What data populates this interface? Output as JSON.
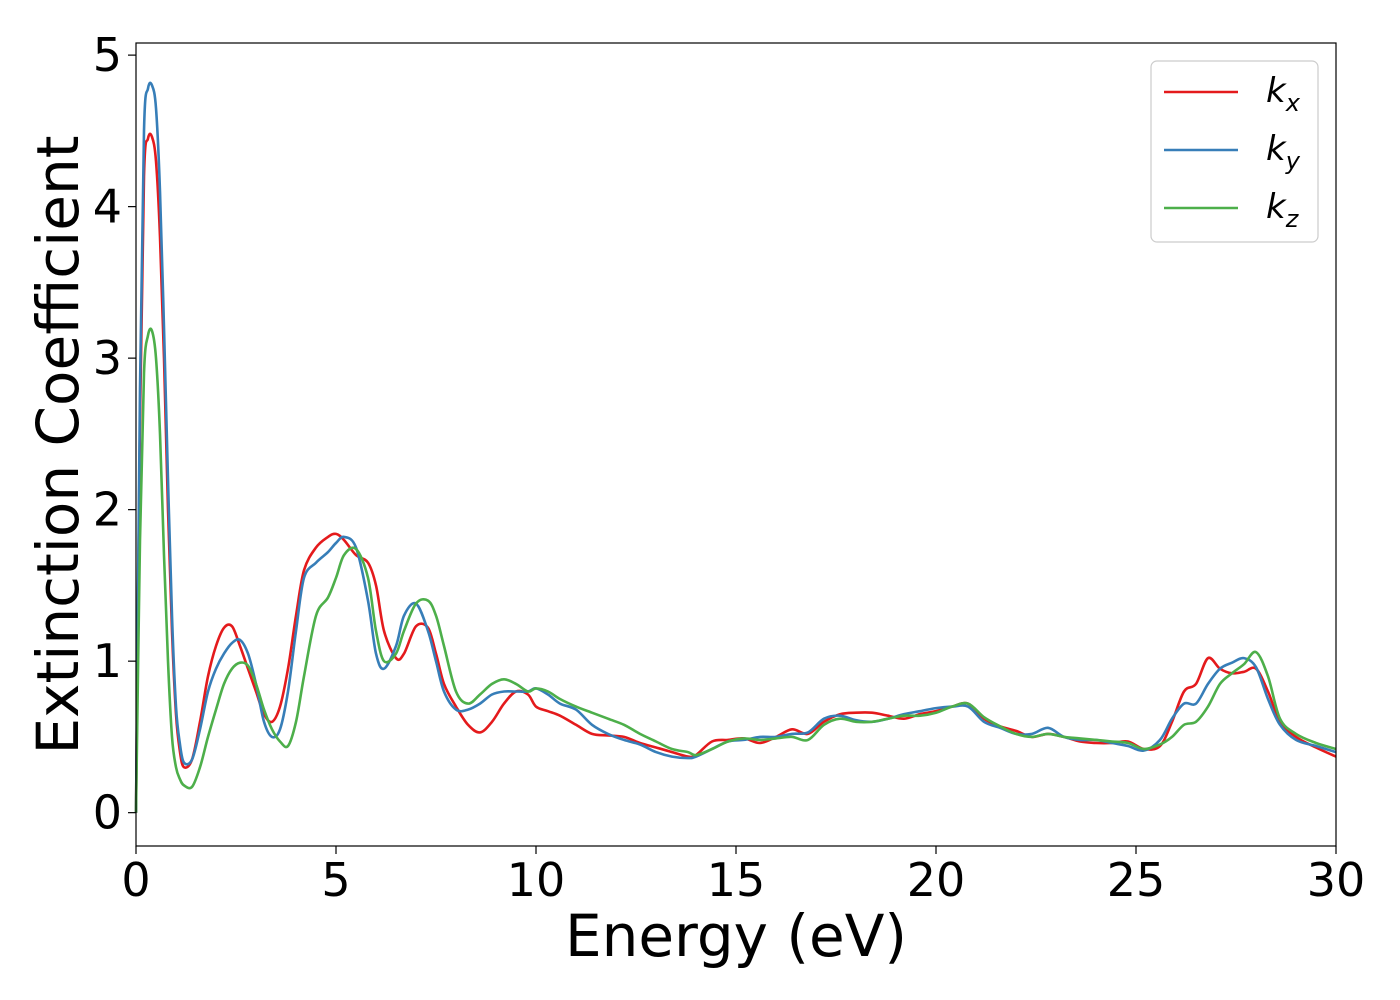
{
  "chart_data": {
    "type": "line",
    "title": "",
    "xlabel": "Energy (eV)",
    "ylabel": "Extinction Coefficient",
    "xlim": [
      0,
      30
    ],
    "ylim": [
      -0.22,
      5.08
    ],
    "xticks": [
      0,
      5,
      10,
      15,
      20,
      25,
      30
    ],
    "yticks": [
      0,
      1,
      2,
      3,
      4,
      5
    ],
    "grid": false,
    "legend_position": "top-right",
    "series": [
      {
        "name": "k",
        "subscript": "x",
        "color": "#e41a1c",
        "x": [
          0.0,
          0.1,
          0.2,
          0.3,
          0.4,
          0.5,
          0.6,
          0.7,
          0.8,
          0.9,
          1.0,
          1.1,
          1.2,
          1.4,
          1.6,
          1.8,
          2.0,
          2.2,
          2.4,
          2.6,
          2.8,
          3.0,
          3.2,
          3.4,
          3.6,
          3.8,
          4.0,
          4.2,
          4.5,
          4.8,
          5.0,
          5.2,
          5.5,
          5.8,
          6.0,
          6.2,
          6.5,
          6.7,
          7.0,
          7.3,
          7.5,
          7.7,
          8.0,
          8.3,
          8.6,
          8.9,
          9.2,
          9.5,
          9.8,
          10.0,
          10.3,
          10.6,
          11.0,
          11.4,
          11.8,
          12.2,
          12.6,
          13.0,
          13.4,
          13.8,
          14.0,
          14.4,
          14.8,
          15.2,
          15.6,
          16.0,
          16.4,
          16.8,
          17.2,
          17.6,
          18.0,
          18.4,
          18.8,
          19.2,
          19.6,
          20.0,
          20.4,
          20.8,
          21.2,
          21.6,
          22.0,
          22.4,
          22.8,
          23.2,
          23.6,
          24.0,
          24.4,
          24.8,
          25.2,
          25.6,
          25.9,
          26.2,
          26.5,
          26.8,
          27.1,
          27.4,
          27.7,
          28.0,
          28.3,
          28.6,
          29.0,
          29.5,
          30.0
        ],
        "y": [
          0.0,
          2.6,
          4.2,
          4.45,
          4.46,
          4.3,
          3.8,
          3.0,
          2.0,
          1.2,
          0.65,
          0.4,
          0.3,
          0.35,
          0.6,
          0.9,
          1.1,
          1.22,
          1.23,
          1.1,
          0.95,
          0.8,
          0.65,
          0.6,
          0.7,
          0.95,
          1.3,
          1.6,
          1.75,
          1.82,
          1.84,
          1.8,
          1.7,
          1.65,
          1.5,
          1.2,
          1.02,
          1.05,
          1.23,
          1.22,
          1.05,
          0.85,
          0.7,
          0.58,
          0.53,
          0.6,
          0.72,
          0.8,
          0.78,
          0.7,
          0.67,
          0.64,
          0.58,
          0.52,
          0.51,
          0.5,
          0.46,
          0.43,
          0.4,
          0.37,
          0.38,
          0.47,
          0.48,
          0.49,
          0.46,
          0.5,
          0.55,
          0.52,
          0.6,
          0.65,
          0.66,
          0.66,
          0.64,
          0.62,
          0.65,
          0.67,
          0.7,
          0.72,
          0.62,
          0.57,
          0.54,
          0.5,
          0.52,
          0.5,
          0.47,
          0.46,
          0.46,
          0.47,
          0.42,
          0.44,
          0.6,
          0.8,
          0.85,
          1.02,
          0.95,
          0.92,
          0.93,
          0.95,
          0.8,
          0.6,
          0.5,
          0.43,
          0.37
        ]
      },
      {
        "name": "k",
        "subscript": "y",
        "color": "#377eb8",
        "x": [
          0.0,
          0.1,
          0.2,
          0.3,
          0.4,
          0.5,
          0.6,
          0.7,
          0.8,
          0.9,
          1.0,
          1.1,
          1.2,
          1.4,
          1.6,
          1.8,
          2.0,
          2.2,
          2.4,
          2.6,
          2.8,
          3.0,
          3.2,
          3.4,
          3.6,
          3.8,
          4.0,
          4.2,
          4.5,
          4.8,
          5.0,
          5.2,
          5.5,
          5.8,
          6.0,
          6.2,
          6.5,
          6.7,
          7.0,
          7.3,
          7.5,
          7.7,
          8.0,
          8.3,
          8.6,
          8.9,
          9.2,
          9.5,
          9.8,
          10.0,
          10.3,
          10.6,
          11.0,
          11.4,
          11.8,
          12.2,
          12.6,
          13.0,
          13.4,
          13.8,
          14.0,
          14.4,
          14.8,
          15.2,
          15.6,
          16.0,
          16.4,
          16.8,
          17.2,
          17.6,
          18.0,
          18.4,
          18.8,
          19.2,
          19.6,
          20.0,
          20.4,
          20.8,
          21.2,
          21.6,
          22.0,
          22.4,
          22.8,
          23.2,
          23.6,
          24.0,
          24.4,
          24.8,
          25.2,
          25.6,
          25.9,
          26.2,
          26.5,
          26.8,
          27.1,
          27.4,
          27.7,
          28.0,
          28.3,
          28.6,
          29.0,
          29.5,
          30.0
        ],
        "y": [
          0.0,
          2.8,
          4.5,
          4.78,
          4.8,
          4.65,
          4.1,
          3.2,
          2.2,
          1.3,
          0.7,
          0.45,
          0.33,
          0.35,
          0.55,
          0.8,
          0.95,
          1.05,
          1.12,
          1.14,
          1.05,
          0.85,
          0.6,
          0.5,
          0.55,
          0.8,
          1.2,
          1.55,
          1.65,
          1.72,
          1.78,
          1.82,
          1.75,
          1.4,
          1.05,
          0.95,
          1.1,
          1.3,
          1.38,
          1.2,
          1.0,
          0.8,
          0.68,
          0.68,
          0.72,
          0.78,
          0.8,
          0.8,
          0.8,
          0.82,
          0.78,
          0.72,
          0.68,
          0.58,
          0.52,
          0.48,
          0.45,
          0.4,
          0.37,
          0.36,
          0.37,
          0.42,
          0.47,
          0.48,
          0.5,
          0.5,
          0.52,
          0.53,
          0.62,
          0.64,
          0.61,
          0.6,
          0.62,
          0.65,
          0.67,
          0.69,
          0.7,
          0.7,
          0.6,
          0.56,
          0.52,
          0.52,
          0.56,
          0.5,
          0.48,
          0.48,
          0.46,
          0.44,
          0.41,
          0.48,
          0.62,
          0.72,
          0.72,
          0.85,
          0.95,
          0.99,
          1.02,
          0.96,
          0.75,
          0.58,
          0.48,
          0.44,
          0.4
        ]
      },
      {
        "name": "k",
        "subscript": "z",
        "color": "#4daf4a",
        "x": [
          0.0,
          0.1,
          0.2,
          0.3,
          0.4,
          0.5,
          0.6,
          0.7,
          0.8,
          0.9,
          1.0,
          1.1,
          1.2,
          1.4,
          1.6,
          1.8,
          2.0,
          2.2,
          2.4,
          2.6,
          2.8,
          3.0,
          3.2,
          3.4,
          3.6,
          3.8,
          4.0,
          4.2,
          4.5,
          4.8,
          5.0,
          5.2,
          5.5,
          5.8,
          6.0,
          6.2,
          6.5,
          6.7,
          7.0,
          7.3,
          7.5,
          7.7,
          8.0,
          8.3,
          8.6,
          8.9,
          9.2,
          9.5,
          9.8,
          10.0,
          10.3,
          10.6,
          11.0,
          11.4,
          11.8,
          12.2,
          12.6,
          13.0,
          13.4,
          13.8,
          14.0,
          14.4,
          14.8,
          15.2,
          15.6,
          16.0,
          16.4,
          16.8,
          17.2,
          17.6,
          18.0,
          18.4,
          18.8,
          19.2,
          19.6,
          20.0,
          20.4,
          20.8,
          21.2,
          21.6,
          22.0,
          22.4,
          22.8,
          23.2,
          23.6,
          24.0,
          24.4,
          24.8,
          25.2,
          25.6,
          25.9,
          26.2,
          26.5,
          26.8,
          27.1,
          27.4,
          27.7,
          28.0,
          28.3,
          28.6,
          29.0,
          29.5,
          30.0
        ],
        "y": [
          0.0,
          1.8,
          2.9,
          3.15,
          3.18,
          3.0,
          2.5,
          1.7,
          1.0,
          0.5,
          0.3,
          0.22,
          0.18,
          0.17,
          0.3,
          0.5,
          0.68,
          0.85,
          0.95,
          0.99,
          0.97,
          0.85,
          0.68,
          0.55,
          0.47,
          0.44,
          0.6,
          0.9,
          1.3,
          1.42,
          1.55,
          1.7,
          1.74,
          1.55,
          1.2,
          1.0,
          1.05,
          1.2,
          1.38,
          1.4,
          1.3,
          1.1,
          0.8,
          0.72,
          0.78,
          0.85,
          0.88,
          0.85,
          0.8,
          0.82,
          0.8,
          0.75,
          0.7,
          0.66,
          0.62,
          0.58,
          0.52,
          0.47,
          0.42,
          0.4,
          0.38,
          0.42,
          0.47,
          0.49,
          0.48,
          0.49,
          0.5,
          0.48,
          0.58,
          0.62,
          0.6,
          0.6,
          0.62,
          0.64,
          0.64,
          0.66,
          0.7,
          0.72,
          0.63,
          0.57,
          0.52,
          0.5,
          0.52,
          0.5,
          0.49,
          0.48,
          0.47,
          0.46,
          0.42,
          0.45,
          0.5,
          0.58,
          0.6,
          0.7,
          0.85,
          0.92,
          0.98,
          1.06,
          0.9,
          0.62,
          0.52,
          0.46,
          0.42
        ]
      }
    ]
  }
}
